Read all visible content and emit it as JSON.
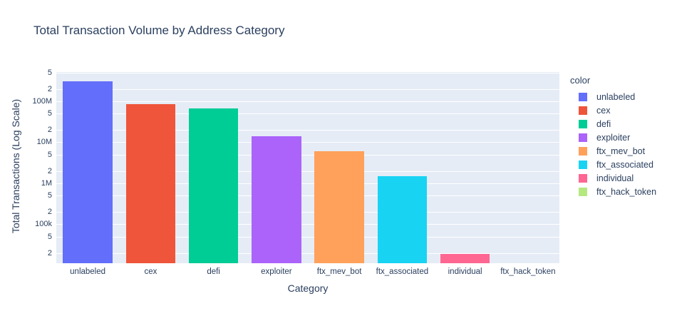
{
  "title": "Total Transaction Volume by Address Category",
  "colors": {
    "text": "#2a3f5f",
    "plot_background": "#E5ECF6",
    "gridline": "#ffffff",
    "page_background": "#ffffff"
  },
  "chart_data": {
    "type": "bar",
    "title": "Total Transaction Volume by Address Category",
    "xlabel": "Category",
    "ylabel": "Total Transactions (Log Scale)",
    "yscale": "log",
    "log_range": [
      4.05,
      8.71
    ],
    "grid": true,
    "legend_position": "right",
    "categories": [
      "unlabeled",
      "cex",
      "defi",
      "exploiter",
      "ftx_mev_bot",
      "ftx_associated",
      "individual",
      "ftx_hack_token"
    ],
    "values": [
      310000000,
      84000000,
      67000000,
      14000000,
      6000000,
      1500000,
      19000,
      0
    ],
    "bar_colors": [
      "#636EFA",
      "#EF553B",
      "#00CC96",
      "#AB63FA",
      "#FFA15A",
      "#19D3F3",
      "#FF6692",
      "#B6E880"
    ],
    "yticks": [
      {
        "label": "5",
        "value": 500000000
      },
      {
        "label": "2",
        "value": 200000000
      },
      {
        "label": "100M",
        "value": 100000000
      },
      {
        "label": "5",
        "value": 50000000
      },
      {
        "label": "2",
        "value": 20000000
      },
      {
        "label": "10M",
        "value": 10000000
      },
      {
        "label": "5",
        "value": 5000000
      },
      {
        "label": "2",
        "value": 2000000
      },
      {
        "label": "1M",
        "value": 1000000
      },
      {
        "label": "5",
        "value": 500000
      },
      {
        "label": "2",
        "value": 200000
      },
      {
        "label": "100k",
        "value": 100000
      },
      {
        "label": "5",
        "value": 50000
      },
      {
        "label": "2",
        "value": 20000
      }
    ],
    "legend": {
      "title": "color",
      "items": [
        {
          "label": "unlabeled",
          "color": "#636EFA"
        },
        {
          "label": "cex",
          "color": "#EF553B"
        },
        {
          "label": "defi",
          "color": "#00CC96"
        },
        {
          "label": "exploiter",
          "color": "#AB63FA"
        },
        {
          "label": "ftx_mev_bot",
          "color": "#FFA15A"
        },
        {
          "label": "ftx_associated",
          "color": "#19D3F3"
        },
        {
          "label": "individual",
          "color": "#FF6692"
        },
        {
          "label": "ftx_hack_token",
          "color": "#B6E880"
        }
      ]
    }
  }
}
